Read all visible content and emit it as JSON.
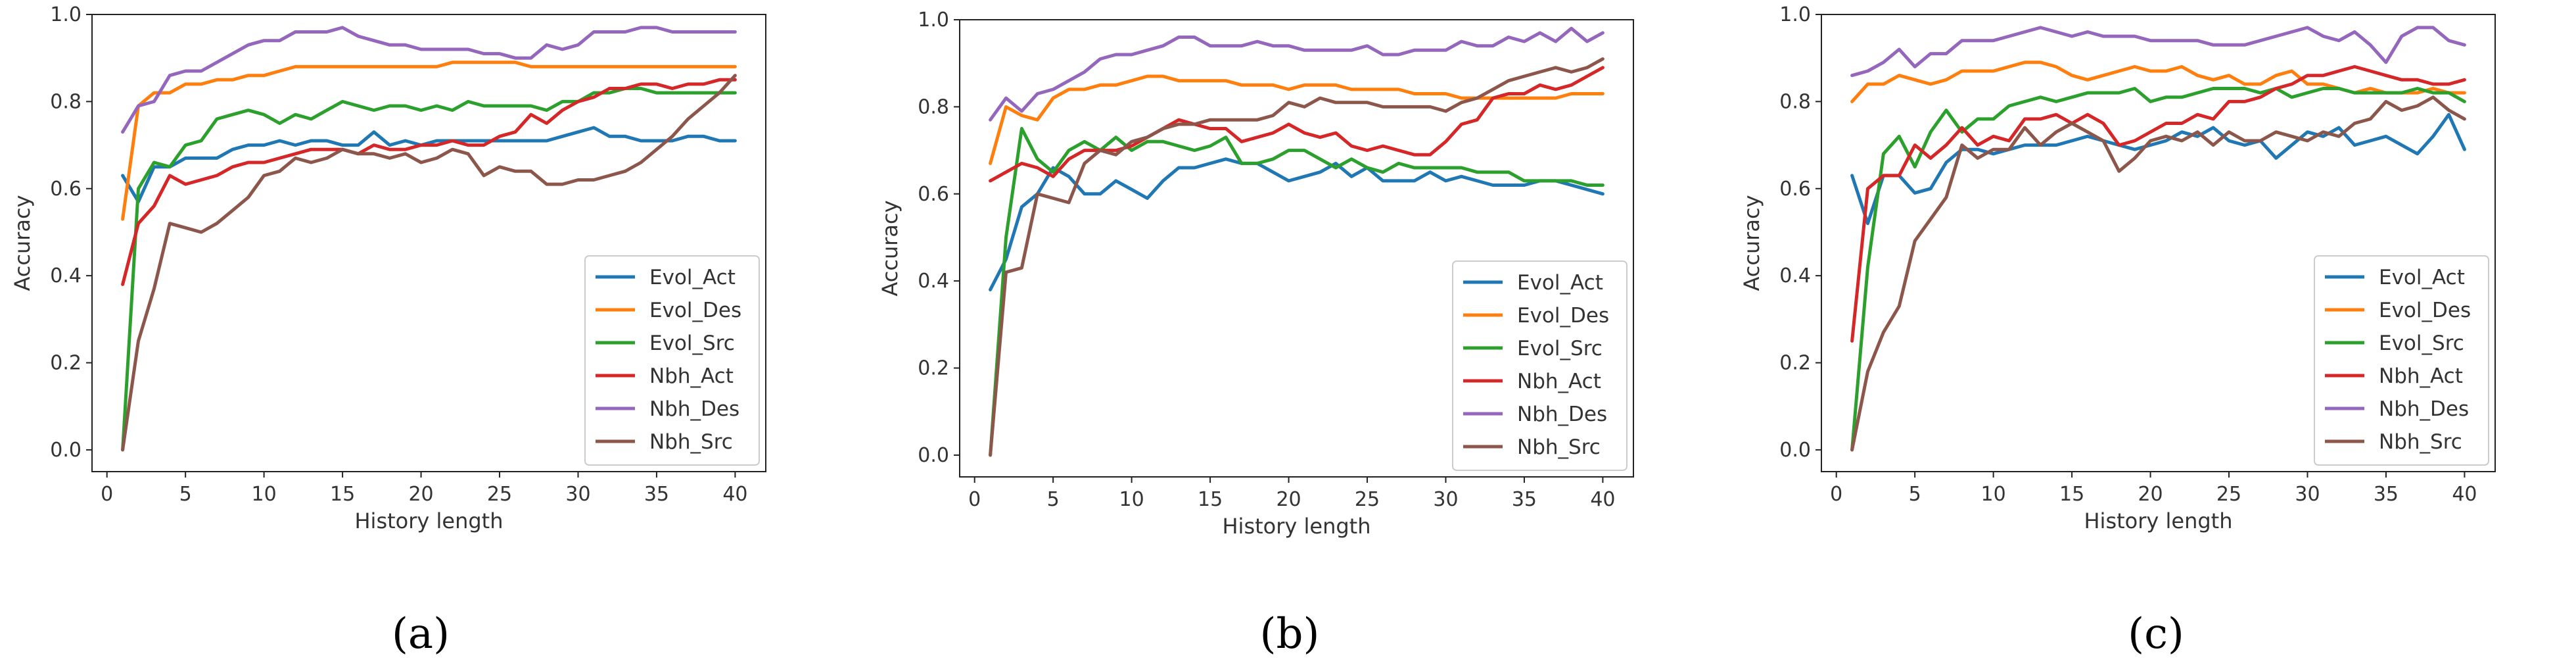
{
  "figure_labels": [
    "(a)",
    "(b)",
    "(c)"
  ],
  "colors": {
    "Evol_Act": "#1f77b4",
    "Evol_Des": "#ff7f0e",
    "Evol_Src": "#2ca02c",
    "Nbh_Act": "#d62728",
    "Nbh_Des": "#9467bd",
    "Nbh_Src": "#8c564b"
  },
  "chart_data": [
    {
      "type": "line",
      "panel": "(a)",
      "xlabel": "History length",
      "ylabel": "Accuracy",
      "xlim": [
        -0.95,
        41.95
      ],
      "ylim": [
        -0.05,
        1.0
      ],
      "xticks": [
        0,
        5,
        10,
        15,
        20,
        25,
        30,
        35,
        40
      ],
      "yticks": [
        0.0,
        0.2,
        0.4,
        0.6,
        0.8,
        1.0
      ],
      "ytick_labels": [
        "0.0",
        "0.2",
        "0.4",
        "0.6",
        "0.8",
        "1.0"
      ],
      "legend_position": "lower-right",
      "x": [
        1,
        2,
        3,
        4,
        5,
        6,
        7,
        8,
        9,
        10,
        11,
        12,
        13,
        14,
        15,
        16,
        17,
        18,
        19,
        20,
        21,
        22,
        23,
        24,
        25,
        26,
        27,
        28,
        29,
        30,
        31,
        32,
        33,
        34,
        35,
        36,
        37,
        38,
        39,
        40
      ],
      "series": [
        {
          "name": "Evol_Act",
          "values": [
            0.63,
            0.57,
            0.65,
            0.65,
            0.67,
            0.67,
            0.67,
            0.69,
            0.7,
            0.7,
            0.71,
            0.7,
            0.71,
            0.71,
            0.7,
            0.7,
            0.73,
            0.7,
            0.71,
            0.7,
            0.71,
            0.71,
            0.71,
            0.71,
            0.71,
            0.71,
            0.71,
            0.71,
            0.72,
            0.73,
            0.74,
            0.72,
            0.72,
            0.71,
            0.71,
            0.71,
            0.72,
            0.72,
            0.71,
            0.71
          ]
        },
        {
          "name": "Evol_Des",
          "values": [
            0.53,
            0.79,
            0.82,
            0.82,
            0.84,
            0.84,
            0.85,
            0.85,
            0.86,
            0.86,
            0.87,
            0.88,
            0.88,
            0.88,
            0.88,
            0.88,
            0.88,
            0.88,
            0.88,
            0.88,
            0.88,
            0.89,
            0.89,
            0.89,
            0.89,
            0.89,
            0.88,
            0.88,
            0.88,
            0.88,
            0.88,
            0.88,
            0.88,
            0.88,
            0.88,
            0.88,
            0.88,
            0.88,
            0.88,
            0.88
          ]
        },
        {
          "name": "Evol_Src",
          "values": [
            0.0,
            0.6,
            0.66,
            0.65,
            0.7,
            0.71,
            0.76,
            0.77,
            0.78,
            0.77,
            0.75,
            0.77,
            0.76,
            0.78,
            0.8,
            0.79,
            0.78,
            0.79,
            0.79,
            0.78,
            0.79,
            0.78,
            0.8,
            0.79,
            0.79,
            0.79,
            0.79,
            0.78,
            0.8,
            0.8,
            0.82,
            0.82,
            0.83,
            0.83,
            0.82,
            0.82,
            0.82,
            0.82,
            0.82,
            0.82
          ]
        },
        {
          "name": "Nbh_Act",
          "values": [
            0.38,
            0.52,
            0.56,
            0.63,
            0.61,
            0.62,
            0.63,
            0.65,
            0.66,
            0.66,
            0.67,
            0.68,
            0.69,
            0.69,
            0.69,
            0.68,
            0.7,
            0.69,
            0.69,
            0.7,
            0.7,
            0.71,
            0.7,
            0.7,
            0.72,
            0.73,
            0.77,
            0.75,
            0.78,
            0.8,
            0.81,
            0.83,
            0.83,
            0.84,
            0.84,
            0.83,
            0.84,
            0.84,
            0.85,
            0.85
          ]
        },
        {
          "name": "Nbh_Des",
          "values": [
            0.73,
            0.79,
            0.8,
            0.86,
            0.87,
            0.87,
            0.89,
            0.91,
            0.93,
            0.94,
            0.94,
            0.96,
            0.96,
            0.96,
            0.97,
            0.95,
            0.94,
            0.93,
            0.93,
            0.92,
            0.92,
            0.92,
            0.92,
            0.91,
            0.91,
            0.9,
            0.9,
            0.93,
            0.92,
            0.93,
            0.96,
            0.96,
            0.96,
            0.97,
            0.97,
            0.96,
            0.96,
            0.96,
            0.96,
            0.96
          ]
        },
        {
          "name": "Nbh_Src",
          "values": [
            0.0,
            0.25,
            0.37,
            0.52,
            0.51,
            0.5,
            0.52,
            0.55,
            0.58,
            0.63,
            0.64,
            0.67,
            0.66,
            0.67,
            0.69,
            0.68,
            0.68,
            0.67,
            0.68,
            0.66,
            0.67,
            0.69,
            0.68,
            0.63,
            0.65,
            0.64,
            0.64,
            0.61,
            0.61,
            0.62,
            0.62,
            0.63,
            0.64,
            0.66,
            0.69,
            0.72,
            0.76,
            0.79,
            0.82,
            0.86
          ]
        }
      ]
    },
    {
      "type": "line",
      "panel": "(b)",
      "xlabel": "History length",
      "ylabel": "Accuracy",
      "xlim": [
        -0.95,
        41.95
      ],
      "ylim": [
        -0.05,
        1.0
      ],
      "xticks": [
        0,
        5,
        10,
        15,
        20,
        25,
        30,
        35,
        40
      ],
      "yticks": [
        0.0,
        0.2,
        0.4,
        0.6,
        0.8,
        1.0
      ],
      "ytick_labels": [
        "0.0",
        "0.2",
        "0.4",
        "0.6",
        "0.8",
        "1.0"
      ],
      "legend_position": "lower-right",
      "x": [
        1,
        2,
        3,
        4,
        5,
        6,
        7,
        8,
        9,
        10,
        11,
        12,
        13,
        14,
        15,
        16,
        17,
        18,
        19,
        20,
        21,
        22,
        23,
        24,
        25,
        26,
        27,
        28,
        29,
        30,
        31,
        32,
        33,
        34,
        35,
        36,
        37,
        38,
        39,
        40
      ],
      "series": [
        {
          "name": "Evol_Act",
          "values": [
            0.38,
            0.45,
            0.57,
            0.6,
            0.66,
            0.64,
            0.6,
            0.6,
            0.63,
            0.61,
            0.59,
            0.63,
            0.66,
            0.66,
            0.67,
            0.68,
            0.67,
            0.67,
            0.65,
            0.63,
            0.64,
            0.65,
            0.67,
            0.64,
            0.66,
            0.63,
            0.63,
            0.63,
            0.65,
            0.63,
            0.64,
            0.63,
            0.62,
            0.62,
            0.62,
            0.63,
            0.63,
            0.62,
            0.61,
            0.6
          ]
        },
        {
          "name": "Evol_Des",
          "values": [
            0.67,
            0.8,
            0.78,
            0.77,
            0.82,
            0.84,
            0.84,
            0.85,
            0.85,
            0.86,
            0.87,
            0.87,
            0.86,
            0.86,
            0.86,
            0.86,
            0.85,
            0.85,
            0.85,
            0.84,
            0.85,
            0.85,
            0.85,
            0.84,
            0.84,
            0.84,
            0.84,
            0.83,
            0.83,
            0.83,
            0.82,
            0.82,
            0.82,
            0.82,
            0.82,
            0.82,
            0.82,
            0.83,
            0.83,
            0.83
          ]
        },
        {
          "name": "Evol_Src",
          "values": [
            0.0,
            0.5,
            0.75,
            0.68,
            0.65,
            0.7,
            0.72,
            0.7,
            0.73,
            0.7,
            0.72,
            0.72,
            0.71,
            0.7,
            0.71,
            0.73,
            0.67,
            0.67,
            0.68,
            0.7,
            0.7,
            0.68,
            0.66,
            0.68,
            0.66,
            0.65,
            0.67,
            0.66,
            0.66,
            0.66,
            0.66,
            0.65,
            0.65,
            0.65,
            0.63,
            0.63,
            0.63,
            0.63,
            0.62,
            0.62
          ]
        },
        {
          "name": "Nbh_Act",
          "values": [
            0.63,
            0.65,
            0.67,
            0.66,
            0.64,
            0.68,
            0.7,
            0.7,
            0.7,
            0.71,
            0.73,
            0.75,
            0.77,
            0.76,
            0.75,
            0.75,
            0.72,
            0.73,
            0.74,
            0.76,
            0.74,
            0.73,
            0.74,
            0.71,
            0.7,
            0.71,
            0.7,
            0.69,
            0.69,
            0.72,
            0.76,
            0.77,
            0.82,
            0.83,
            0.83,
            0.85,
            0.84,
            0.85,
            0.87,
            0.89
          ]
        },
        {
          "name": "Nbh_Des",
          "values": [
            0.77,
            0.82,
            0.79,
            0.83,
            0.84,
            0.86,
            0.88,
            0.91,
            0.92,
            0.92,
            0.93,
            0.94,
            0.96,
            0.96,
            0.94,
            0.94,
            0.94,
            0.95,
            0.94,
            0.94,
            0.93,
            0.93,
            0.93,
            0.93,
            0.94,
            0.92,
            0.92,
            0.93,
            0.93,
            0.93,
            0.95,
            0.94,
            0.94,
            0.96,
            0.95,
            0.97,
            0.95,
            0.98,
            0.95,
            0.97
          ]
        },
        {
          "name": "Nbh_Src",
          "values": [
            0.0,
            0.42,
            0.43,
            0.6,
            0.59,
            0.58,
            0.67,
            0.7,
            0.69,
            0.72,
            0.73,
            0.75,
            0.76,
            0.76,
            0.77,
            0.77,
            0.77,
            0.77,
            0.78,
            0.81,
            0.8,
            0.82,
            0.81,
            0.81,
            0.81,
            0.8,
            0.8,
            0.8,
            0.8,
            0.79,
            0.81,
            0.82,
            0.84,
            0.86,
            0.87,
            0.88,
            0.89,
            0.88,
            0.89,
            0.91
          ]
        }
      ]
    },
    {
      "type": "line",
      "panel": "(c)",
      "xlabel": "History length",
      "ylabel": "Accuracy",
      "xlim": [
        -0.95,
        41.95
      ],
      "ylim": [
        -0.05,
        1.0
      ],
      "xticks": [
        0,
        5,
        10,
        15,
        20,
        25,
        30,
        35,
        40
      ],
      "yticks": [
        0.0,
        0.2,
        0.4,
        0.6,
        0.8,
        1.0
      ],
      "ytick_labels": [
        "0.0",
        "0.2",
        "0.4",
        "0.6",
        "0.8",
        "1.0"
      ],
      "legend_position": "lower-right",
      "x": [
        1,
        2,
        3,
        4,
        5,
        6,
        7,
        8,
        9,
        10,
        11,
        12,
        13,
        14,
        15,
        16,
        17,
        18,
        19,
        20,
        21,
        22,
        23,
        24,
        25,
        26,
        27,
        28,
        29,
        30,
        31,
        32,
        33,
        34,
        35,
        36,
        37,
        38,
        39,
        40
      ],
      "series": [
        {
          "name": "Evol_Act",
          "values": [
            0.63,
            0.52,
            0.63,
            0.63,
            0.59,
            0.6,
            0.66,
            0.69,
            0.69,
            0.68,
            0.69,
            0.7,
            0.7,
            0.7,
            0.71,
            0.72,
            0.71,
            0.7,
            0.69,
            0.7,
            0.71,
            0.73,
            0.72,
            0.74,
            0.71,
            0.7,
            0.71,
            0.67,
            0.7,
            0.73,
            0.72,
            0.74,
            0.7,
            0.71,
            0.72,
            0.7,
            0.68,
            0.72,
            0.77,
            0.69
          ]
        },
        {
          "name": "Evol_Des",
          "values": [
            0.8,
            0.84,
            0.84,
            0.86,
            0.85,
            0.84,
            0.85,
            0.87,
            0.87,
            0.87,
            0.88,
            0.89,
            0.89,
            0.88,
            0.86,
            0.85,
            0.86,
            0.87,
            0.88,
            0.87,
            0.87,
            0.88,
            0.86,
            0.85,
            0.86,
            0.84,
            0.84,
            0.86,
            0.87,
            0.84,
            0.84,
            0.83,
            0.82,
            0.83,
            0.82,
            0.82,
            0.82,
            0.83,
            0.82,
            0.82
          ]
        },
        {
          "name": "Evol_Src",
          "values": [
            0.0,
            0.42,
            0.68,
            0.72,
            0.65,
            0.73,
            0.78,
            0.73,
            0.76,
            0.76,
            0.79,
            0.8,
            0.81,
            0.8,
            0.81,
            0.82,
            0.82,
            0.82,
            0.83,
            0.8,
            0.81,
            0.81,
            0.82,
            0.83,
            0.83,
            0.83,
            0.82,
            0.83,
            0.81,
            0.82,
            0.83,
            0.83,
            0.82,
            0.82,
            0.82,
            0.82,
            0.83,
            0.82,
            0.82,
            0.8
          ]
        },
        {
          "name": "Nbh_Act",
          "values": [
            0.25,
            0.6,
            0.63,
            0.63,
            0.7,
            0.67,
            0.7,
            0.74,
            0.7,
            0.72,
            0.71,
            0.76,
            0.76,
            0.77,
            0.75,
            0.77,
            0.75,
            0.7,
            0.71,
            0.73,
            0.75,
            0.75,
            0.77,
            0.76,
            0.8,
            0.8,
            0.81,
            0.83,
            0.84,
            0.86,
            0.86,
            0.87,
            0.88,
            0.87,
            0.86,
            0.85,
            0.85,
            0.84,
            0.84,
            0.85
          ]
        },
        {
          "name": "Nbh_Des",
          "values": [
            0.86,
            0.87,
            0.89,
            0.92,
            0.88,
            0.91,
            0.91,
            0.94,
            0.94,
            0.94,
            0.95,
            0.96,
            0.97,
            0.96,
            0.95,
            0.96,
            0.95,
            0.95,
            0.95,
            0.94,
            0.94,
            0.94,
            0.94,
            0.93,
            0.93,
            0.93,
            0.94,
            0.95,
            0.96,
            0.97,
            0.95,
            0.94,
            0.96,
            0.93,
            0.89,
            0.95,
            0.97,
            0.97,
            0.94,
            0.93
          ]
        },
        {
          "name": "Nbh_Src",
          "values": [
            0.0,
            0.18,
            0.27,
            0.33,
            0.48,
            0.53,
            0.58,
            0.7,
            0.67,
            0.69,
            0.69,
            0.74,
            0.7,
            0.73,
            0.75,
            0.73,
            0.71,
            0.64,
            0.67,
            0.71,
            0.72,
            0.71,
            0.73,
            0.7,
            0.73,
            0.71,
            0.71,
            0.73,
            0.72,
            0.71,
            0.73,
            0.72,
            0.75,
            0.76,
            0.8,
            0.78,
            0.79,
            0.81,
            0.78,
            0.76
          ]
        }
      ]
    }
  ]
}
